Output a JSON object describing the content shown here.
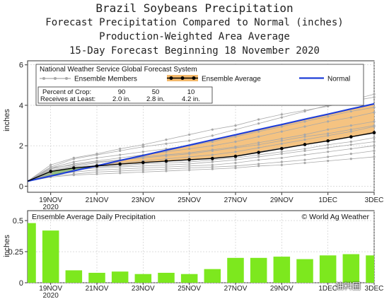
{
  "title": {
    "line1": "Brazil Soybeans Precipitation",
    "line2": "Forecast Precipitation Compared to Normal (inches)",
    "line3": "Production-Weighted Area Average",
    "line4": "15-Day Forecast Beginning 18 November 2020"
  },
  "watermark": "油料圈",
  "colors": {
    "normal": "#1f3fd8",
    "ensemble_avg_fill": "#f3b96b",
    "below_normal_fill": "#76d13a",
    "members": "#a9a9a9",
    "bars": "#7de81e"
  },
  "chart_data": [
    {
      "type": "line",
      "legend": {
        "header": "National Weather Service Global Forecast System",
        "members_label": "Ensemble Members",
        "avg_label": "Ensemble Average",
        "normal_label": "Normal",
        "crop_row": [
          "Percent of Crop:",
          "90",
          "50",
          "10"
        ],
        "recv_row": [
          "Receives at Least:",
          "2.0 in.",
          "2.8 in.",
          "4.2 in."
        ]
      },
      "ylabel": "inches",
      "ylim": [
        -0.3,
        6.2
      ],
      "yticks": [
        "0",
        "2",
        "4",
        "6"
      ],
      "x": [
        0,
        1,
        2,
        3,
        4,
        5,
        6,
        7,
        8,
        9,
        10,
        11,
        12,
        13,
        14,
        15
      ],
      "xticks": [
        {
          "day": 1,
          "label": "19NOV",
          "sub": "2020"
        },
        {
          "day": 3,
          "label": "21NOV",
          "sub": ""
        },
        {
          "day": 5,
          "label": "23NOV",
          "sub": ""
        },
        {
          "day": 7,
          "label": "25NOV",
          "sub": ""
        },
        {
          "day": 9,
          "label": "27NOV",
          "sub": ""
        },
        {
          "day": 11,
          "label": "29NOV",
          "sub": ""
        },
        {
          "day": 13,
          "label": "1DEC",
          "sub": ""
        },
        {
          "day": 15,
          "label": "3DEC",
          "sub": ""
        }
      ],
      "series": [
        {
          "name": "Normal",
          "values": [
            0.25,
            0.5,
            0.76,
            1.01,
            1.27,
            1.52,
            1.78,
            2.03,
            2.29,
            2.54,
            2.8,
            3.05,
            3.31,
            3.56,
            3.82,
            4.07
          ]
        },
        {
          "name": "Ensemble Average",
          "values": [
            0.25,
            0.73,
            0.9,
            1.0,
            1.09,
            1.17,
            1.24,
            1.31,
            1.37,
            1.48,
            1.67,
            1.86,
            2.06,
            2.24,
            2.44,
            2.65
          ]
        }
      ],
      "members": [
        [
          0.25,
          0.95,
          1.35,
          1.55,
          1.75,
          1.95,
          2.1,
          2.25,
          2.5,
          2.8,
          3.1,
          3.4,
          3.7,
          4.0,
          4.25,
          4.55
        ],
        [
          0.25,
          0.9,
          1.2,
          1.4,
          1.55,
          1.7,
          1.85,
          2.0,
          2.2,
          2.45,
          2.7,
          2.95,
          3.2,
          3.45,
          3.7,
          3.9
        ],
        [
          0.25,
          0.85,
          1.1,
          1.25,
          1.4,
          1.55,
          1.7,
          1.85,
          2.0,
          2.2,
          2.45,
          2.7,
          2.95,
          3.2,
          3.4,
          3.65
        ],
        [
          0.25,
          0.8,
          1.0,
          1.15,
          1.3,
          1.45,
          1.55,
          1.65,
          1.8,
          1.95,
          2.15,
          2.35,
          2.55,
          2.8,
          3.0,
          3.2
        ],
        [
          0.25,
          0.75,
          0.95,
          1.05,
          1.15,
          1.25,
          1.35,
          1.45,
          1.55,
          1.7,
          1.9,
          2.1,
          2.3,
          2.5,
          2.7,
          2.95
        ],
        [
          0.25,
          0.7,
          0.9,
          1.0,
          1.1,
          1.15,
          1.25,
          1.3,
          1.4,
          1.5,
          1.7,
          1.9,
          2.05,
          2.25,
          2.45,
          2.6
        ],
        [
          0.25,
          0.65,
          0.85,
          0.95,
          1.0,
          1.1,
          1.15,
          1.2,
          1.3,
          1.4,
          1.55,
          1.7,
          1.85,
          2.05,
          2.2,
          2.4
        ],
        [
          0.25,
          0.6,
          0.8,
          0.9,
          0.95,
          1.0,
          1.05,
          1.1,
          1.2,
          1.3,
          1.45,
          1.6,
          1.75,
          1.9,
          2.05,
          2.2
        ],
        [
          0.25,
          0.55,
          0.7,
          0.8,
          0.85,
          0.9,
          0.95,
          1.0,
          1.05,
          1.15,
          1.3,
          1.4,
          1.55,
          1.7,
          1.85,
          2.0
        ],
        [
          0.25,
          0.5,
          0.6,
          0.7,
          0.75,
          0.8,
          0.85,
          0.9,
          0.95,
          1.0,
          1.1,
          1.2,
          1.3,
          1.45,
          1.6,
          1.75
        ],
        [
          0.25,
          1.05,
          1.4,
          1.6,
          1.85,
          2.05,
          2.3,
          2.55,
          2.8,
          3.0,
          3.3,
          3.55,
          3.75,
          3.95,
          4.2,
          4.4
        ],
        [
          0.25,
          0.9,
          1.05,
          1.2,
          1.3,
          1.4,
          1.5,
          1.6,
          1.75,
          1.9,
          2.05,
          2.25,
          2.45,
          2.6,
          2.8,
          3.0
        ],
        [
          0.25,
          0.45,
          0.55,
          0.6,
          0.65,
          0.7,
          0.75,
          0.8,
          0.85,
          0.9,
          1.0,
          1.05,
          1.15,
          1.25,
          1.35,
          1.45
        ]
      ]
    },
    {
      "type": "bar",
      "title": "Ensemble Average Daily Precipitation",
      "credit": "© World Ag Weather",
      "ylabel": "inches",
      "ylim": [
        0,
        0.58
      ],
      "yticks": [
        "0",
        "0.25",
        "0.5"
      ],
      "x": [
        0,
        1,
        2,
        3,
        4,
        5,
        6,
        7,
        8,
        9,
        10,
        11,
        12,
        13,
        14,
        15
      ],
      "values": [
        0.48,
        0.42,
        0.1,
        0.08,
        0.09,
        0.07,
        0.08,
        0.07,
        0.11,
        0.2,
        0.2,
        0.21,
        0.19,
        0.22,
        0.23,
        0.22
      ]
    }
  ]
}
